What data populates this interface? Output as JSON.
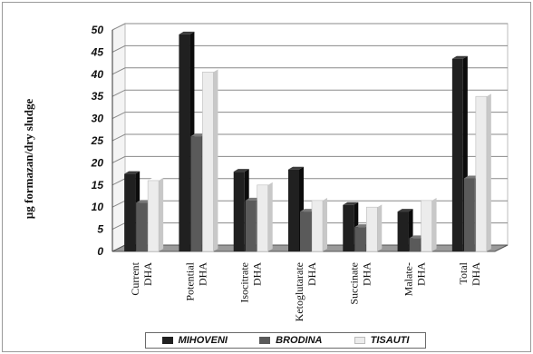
{
  "chart_data": {
    "type": "bar",
    "title": "",
    "xlabel": "",
    "ylabel": "µg formazan/dry sludge",
    "ylim": [
      0,
      50
    ],
    "yticks": [
      0,
      5,
      10,
      15,
      20,
      25,
      30,
      35,
      40,
      45,
      50
    ],
    "grid": "horizontal",
    "legend_position": "bottom",
    "categories": [
      [
        "Current",
        "DHA"
      ],
      [
        "Potential",
        "DHA"
      ],
      [
        "Isocitrate",
        "DHA"
      ],
      [
        "Ketoglutarate",
        "DHA"
      ],
      [
        "Succinate",
        "DHA"
      ],
      [
        "Malate-",
        "DHA"
      ],
      [
        "Total",
        "DHA"
      ]
    ],
    "series": [
      {
        "name": "MIHOVENI",
        "color": "#202020",
        "values": [
          17.5,
          49,
          18,
          18.5,
          10.5,
          9,
          43.5
        ]
      },
      {
        "name": "BRODINA",
        "color": "#5a5a5a",
        "values": [
          11,
          26,
          11.5,
          9,
          5.5,
          3,
          16.5
        ]
      },
      {
        "name": "TISAUTI",
        "color": "#ececec",
        "values": [
          16,
          40.5,
          15,
          11.5,
          10,
          11.5,
          35
        ]
      }
    ]
  }
}
